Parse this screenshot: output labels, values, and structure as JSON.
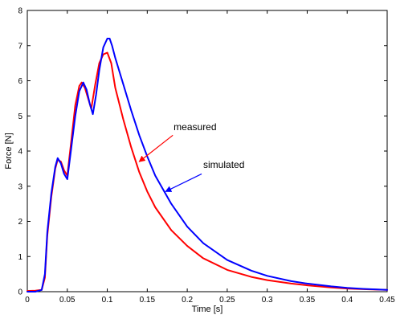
{
  "chart_data": {
    "type": "line",
    "title": "",
    "xlabel": "Time [s]",
    "ylabel": "Force [N]",
    "xlim": [
      0,
      0.45
    ],
    "ylim": [
      0,
      8
    ],
    "x_ticks": [
      0,
      0.05,
      0.1,
      0.15,
      0.2,
      0.25,
      0.3,
      0.35,
      0.4,
      0.45
    ],
    "x_tick_labels": [
      "0",
      "0.05",
      "0.1",
      "0.15",
      "0.2",
      "0.25",
      "0.3",
      "0.35",
      "0.4",
      "0.45"
    ],
    "y_ticks": [
      0,
      1,
      2,
      3,
      4,
      5,
      6,
      7,
      8
    ],
    "y_tick_labels": [
      "0",
      "1",
      "2",
      "3",
      "4",
      "5",
      "6",
      "7",
      "8"
    ],
    "grid": false,
    "series": [
      {
        "name": "measured",
        "color": "#ff0000",
        "x": [
          0,
          0.01,
          0.018,
          0.022,
          0.025,
          0.03,
          0.035,
          0.038,
          0.042,
          0.046,
          0.05,
          0.055,
          0.06,
          0.065,
          0.068,
          0.072,
          0.076,
          0.08,
          0.085,
          0.09,
          0.095,
          0.1,
          0.105,
          0.11,
          0.12,
          0.13,
          0.14,
          0.15,
          0.16,
          0.18,
          0.2,
          0.22,
          0.25,
          0.28,
          0.3,
          0.33,
          0.35,
          0.38,
          0.4,
          0.42,
          0.45
        ],
        "y": [
          0.02,
          0.03,
          0.05,
          0.4,
          1.6,
          2.7,
          3.5,
          3.75,
          3.7,
          3.45,
          3.3,
          4.3,
          5.3,
          5.85,
          5.95,
          5.8,
          5.5,
          5.2,
          5.9,
          6.5,
          6.75,
          6.8,
          6.5,
          5.8,
          4.9,
          4.1,
          3.4,
          2.85,
          2.4,
          1.75,
          1.3,
          0.95,
          0.62,
          0.42,
          0.33,
          0.23,
          0.18,
          0.12,
          0.09,
          0.07,
          0.05
        ]
      },
      {
        "name": "simulated",
        "color": "#0000ff",
        "x": [
          0,
          0.01,
          0.018,
          0.022,
          0.025,
          0.03,
          0.035,
          0.038,
          0.042,
          0.046,
          0.05,
          0.055,
          0.06,
          0.065,
          0.07,
          0.074,
          0.078,
          0.082,
          0.086,
          0.09,
          0.095,
          0.1,
          0.103,
          0.106,
          0.11,
          0.12,
          0.13,
          0.14,
          0.15,
          0.16,
          0.18,
          0.2,
          0.22,
          0.25,
          0.28,
          0.3,
          0.33,
          0.35,
          0.38,
          0.4,
          0.42,
          0.45
        ],
        "y": [
          0,
          0,
          0.05,
          0.5,
          1.7,
          2.8,
          3.55,
          3.8,
          3.65,
          3.35,
          3.2,
          4.1,
          5.0,
          5.7,
          5.95,
          5.75,
          5.35,
          5.05,
          5.6,
          6.3,
          6.95,
          7.2,
          7.2,
          7.0,
          6.65,
          5.9,
          5.15,
          4.45,
          3.85,
          3.3,
          2.5,
          1.85,
          1.38,
          0.9,
          0.6,
          0.45,
          0.3,
          0.23,
          0.15,
          0.11,
          0.08,
          0.05
        ]
      }
    ],
    "annotations": [
      {
        "text": "measured",
        "text_at": [
          0.183,
          4.6
        ],
        "arrow_from": [
          0.182,
          4.45
        ],
        "arrow_to": [
          0.14,
          3.7
        ],
        "color": "#ff0000"
      },
      {
        "text": "simulated",
        "text_at": [
          0.22,
          3.52
        ],
        "arrow_from": [
          0.218,
          3.35
        ],
        "arrow_to": [
          0.173,
          2.85
        ],
        "color": "#0000ff"
      }
    ]
  }
}
